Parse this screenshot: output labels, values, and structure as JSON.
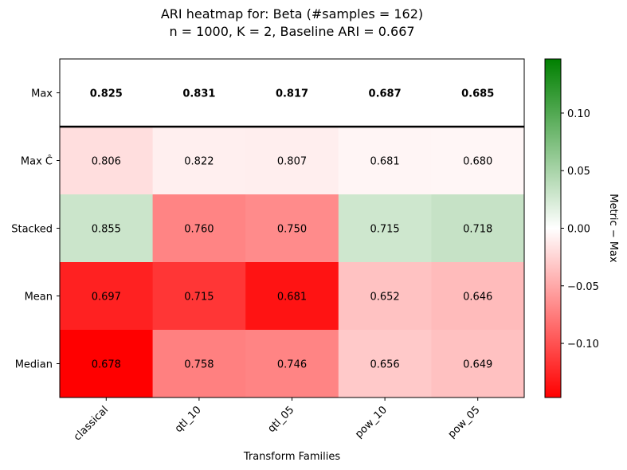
{
  "chart_data": {
    "type": "heatmap",
    "title_line1": "ARI heatmap for: Beta (#samples = 162)",
    "title_line2": "n = 1000, K = 2, Baseline ARI = 0.667",
    "xlabel": "Transform Families",
    "ylabel": "",
    "colorbar_label": "Metric − Max",
    "x_categories": [
      "classical",
      "qtl_10",
      "qtl_05",
      "pow_10",
      "pow_05"
    ],
    "y_categories": [
      "Max",
      "Max Ĉ",
      "Stacked",
      "Mean",
      "Median"
    ],
    "values": [
      [
        0.825,
        0.831,
        0.817,
        0.687,
        0.685
      ],
      [
        0.806,
        0.822,
        0.807,
        0.681,
        0.68
      ],
      [
        0.855,
        0.76,
        0.75,
        0.715,
        0.718
      ],
      [
        0.697,
        0.715,
        0.681,
        0.652,
        0.646
      ],
      [
        0.678,
        0.758,
        0.746,
        0.656,
        0.649
      ]
    ],
    "cell_text": [
      [
        "0.825",
        "0.831",
        "0.817",
        "0.687",
        "0.685"
      ],
      [
        "0.806",
        "0.822",
        "0.807",
        "0.681",
        "0.680"
      ],
      [
        "0.855",
        "0.760",
        "0.750",
        "0.715",
        "0.718"
      ],
      [
        "0.697",
        "0.715",
        "0.681",
        "0.652",
        "0.646"
      ],
      [
        "0.678",
        "0.758",
        "0.746",
        "0.656",
        "0.649"
      ]
    ],
    "bold_rows": [
      0
    ],
    "color_scale": {
      "vmin": -0.147,
      "vmax": 0.147,
      "low": "#ff0000",
      "mid": "#ffffff",
      "high": "#008000"
    },
    "colorbar_ticks": [
      0.1,
      0.05,
      0.0,
      -0.05,
      -0.1
    ],
    "colorbar_tick_labels": [
      "0.10",
      "0.05",
      "0.00",
      "−0.05",
      "−0.10"
    ],
    "separator_after_row": 0
  }
}
